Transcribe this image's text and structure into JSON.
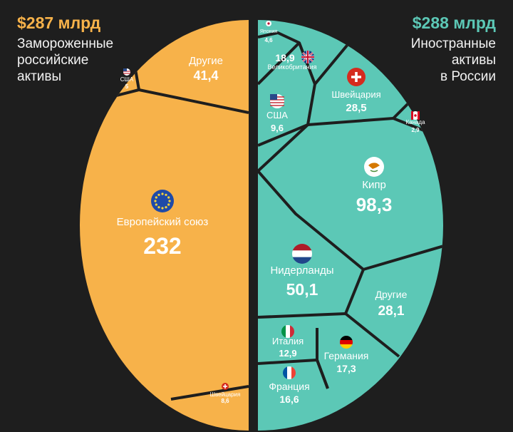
{
  "chart_data": [
    {
      "type": "voronoi-treemap",
      "title": "$287 млрд",
      "subtitle": "Замороженные\nроссийские\nактивы",
      "color": "#f7b24a",
      "cells": [
        {
          "name": "Европейский союз",
          "value": 232,
          "value_label": "232",
          "icon": "eu-flag-icon"
        },
        {
          "name": "Другие",
          "value": 41.4,
          "value_label": "41,4",
          "icon": ""
        },
        {
          "name": "США",
          "value": 5,
          "value_label": "5",
          "icon": "us-flag-icon"
        },
        {
          "name": "Швейцария",
          "value": 8.6,
          "value_label": "8,6",
          "icon": "swiss-flag-icon"
        }
      ]
    },
    {
      "type": "voronoi-treemap",
      "title": "$288 млрд",
      "subtitle": "Иностранные\nактивы\nв России",
      "color": "#5cc8b6",
      "cells": [
        {
          "name": "Кипр",
          "value": 98.3,
          "value_label": "98,3",
          "icon": "cyprus-flag-icon"
        },
        {
          "name": "Нидерланды",
          "value": 50.1,
          "value_label": "50,1",
          "icon": "netherlands-flag-icon"
        },
        {
          "name": "Другие",
          "value": 28.1,
          "value_label": "28,1",
          "icon": ""
        },
        {
          "name": "Швейцария",
          "value": 28.5,
          "value_label": "28,5",
          "icon": "swiss-flag-icon"
        },
        {
          "name": "Великобритания",
          "value": 18.9,
          "value_label": "18,9",
          "icon": "uk-flag-icon"
        },
        {
          "name": "Германия",
          "value": 17.3,
          "value_label": "17,3",
          "icon": "germany-flag-icon"
        },
        {
          "name": "Франция",
          "value": 16.6,
          "value_label": "16,6",
          "icon": "france-flag-icon"
        },
        {
          "name": "Италия",
          "value": 12.9,
          "value_label": "12,9",
          "icon": "italy-flag-icon"
        },
        {
          "name": "США",
          "value": 9.6,
          "value_label": "9,6",
          "icon": "us-flag-icon"
        },
        {
          "name": "Япония",
          "value": 4.6,
          "value_label": "4,6",
          "icon": "japan-flag-icon"
        },
        {
          "name": "Канада",
          "value": 2.9,
          "value_label": "2,9",
          "icon": "canada-flag-icon"
        }
      ]
    }
  ],
  "colors": {
    "background": "#1e1e1e",
    "frozen": "#f7b24a",
    "foreign": "#5cc8b6",
    "border": "#1e1e1e"
  }
}
